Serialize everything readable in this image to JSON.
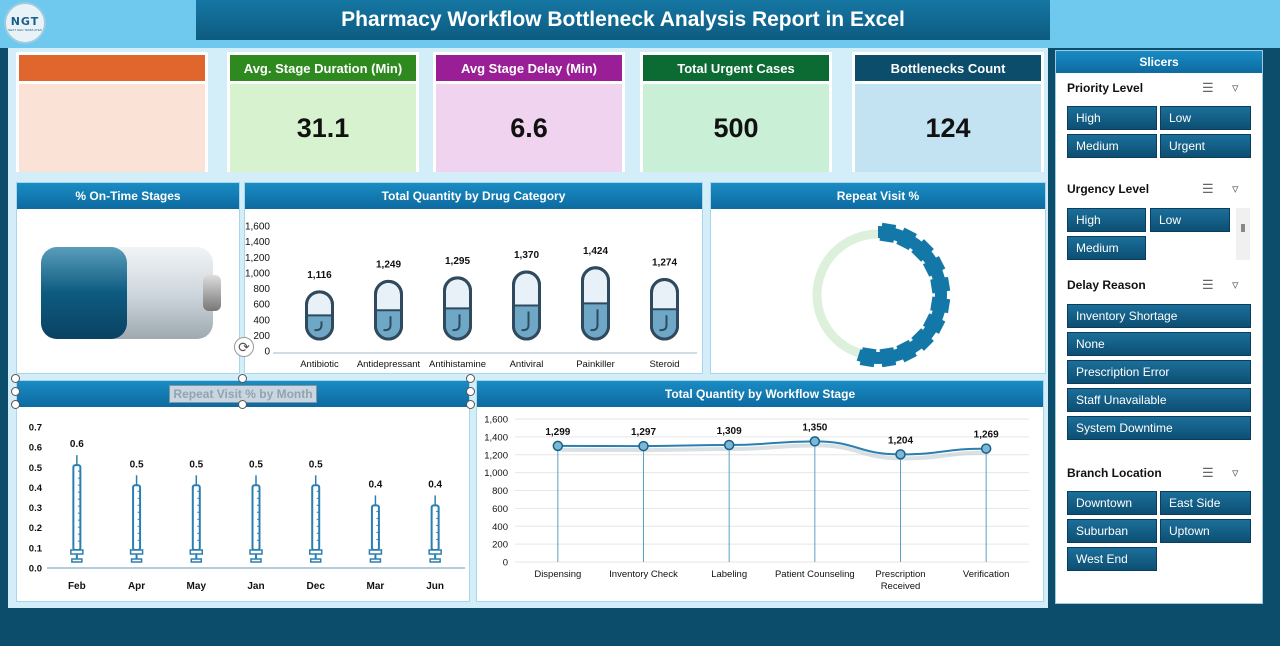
{
  "header": {
    "title": "Pharmacy Workflow Bottleneck Analysis Report in Excel",
    "logo_text": "NGT",
    "logo_subtext": "NEXT GEN TEMPLATES"
  },
  "kpis": [
    {
      "label": "",
      "value": "",
      "head_color": "#e0662d",
      "body_color": "#fbe2d7"
    },
    {
      "label": "Avg. Stage Duration (Min)",
      "value": "31.1",
      "head_color": "#2e8a1f",
      "body_color": "#d7f2cf"
    },
    {
      "label": "Avg Stage Delay (Min)",
      "value": "6.6",
      "head_color": "#9a1f97",
      "body_color": "#efd3ef"
    },
    {
      "label": "Total Urgent Cases",
      "value": "500",
      "head_color": "#0b6b32",
      "body_color": "#c9efd6"
    },
    {
      "label": "Bottlenecks Count",
      "value": "124",
      "head_color": "#0b4d6b",
      "body_color": "#c3e3f3"
    }
  ],
  "panels": {
    "on_time": {
      "title": "% On-Time Stages",
      "fill_fraction": 0.5
    },
    "drug_category": {
      "title": "Total Quantity by Drug Category"
    },
    "repeat_visit": {
      "title": "Repeat Visit %",
      "fill_fraction": 0.55
    },
    "repeat_by_month": {
      "title": "Repeat Visit % by Month"
    },
    "workflow_stage": {
      "title": "Total Quantity by Workflow Stage"
    }
  },
  "chart_data": [
    {
      "type": "bar",
      "title": "Total Quantity by Drug Category",
      "categories": [
        "Antibiotic",
        "Antidepressant",
        "Antihistamine",
        "Antiviral",
        "Painkiller",
        "Steroid"
      ],
      "values": [
        1116,
        1249,
        1295,
        1370,
        1424,
        1274
      ],
      "value_labels": [
        "1,116",
        "1,249",
        "1,295",
        "1,370",
        "1,424",
        "1,274"
      ],
      "ylim": [
        0,
        1600
      ],
      "yticks": [
        "0",
        "200",
        "400",
        "600",
        "800",
        "1,000",
        "1,200",
        "1,400",
        "1,600"
      ]
    },
    {
      "type": "bar",
      "title": "Repeat Visit % by Month",
      "categories": [
        "Feb",
        "Apr",
        "May",
        "Jan",
        "Dec",
        "Mar",
        "Jun"
      ],
      "values": [
        0.6,
        0.5,
        0.5,
        0.5,
        0.5,
        0.4,
        0.4
      ],
      "value_labels": [
        "0.6",
        "0.5",
        "0.5",
        "0.5",
        "0.5",
        "0.4",
        "0.4"
      ],
      "ylim": [
        0,
        0.7
      ],
      "yticks": [
        "0.0",
        "0.1",
        "0.2",
        "0.3",
        "0.4",
        "0.5",
        "0.6",
        "0.7"
      ]
    },
    {
      "type": "line",
      "title": "Total Quantity by Workflow Stage",
      "categories": [
        "Dispensing",
        "Inventory Check",
        "Labeling",
        "Patient Counseling",
        "Prescription Received",
        "Verification"
      ],
      "values": [
        1299,
        1297,
        1309,
        1350,
        1204,
        1269
      ],
      "value_labels": [
        "1,299",
        "1,297",
        "1,309",
        "1,350",
        "1,204",
        "1,269"
      ],
      "ylim": [
        0,
        1600
      ],
      "yticks": [
        "0",
        "200",
        "400",
        "600",
        "800",
        "1,000",
        "1,200",
        "1,400",
        "1,600"
      ]
    }
  ],
  "slicers": {
    "title": "Slicers",
    "groups": [
      {
        "title": "Priority Level",
        "items": [
          "High",
          "Low",
          "Medium",
          "Urgent"
        ]
      },
      {
        "title": "Urgency Level",
        "items": [
          "High",
          "Low",
          "Medium"
        ]
      },
      {
        "title": "Delay Reason",
        "items": [
          "Inventory Shortage",
          "None",
          "Prescription Error",
          "Staff Unavailable",
          "System Downtime"
        ]
      },
      {
        "title": "Branch Location",
        "items": [
          "Downtown",
          "East Side",
          "Suburban",
          "Uptown",
          "West End"
        ]
      }
    ]
  }
}
